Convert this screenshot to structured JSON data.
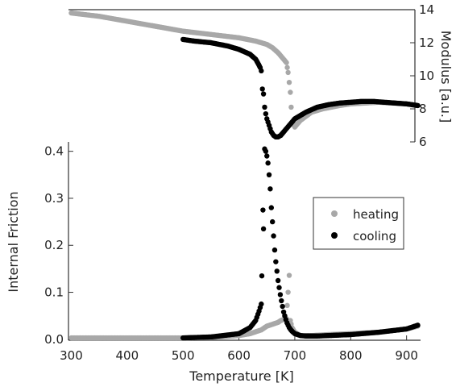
{
  "chart_data": [
    {
      "type": "scatter",
      "title": "",
      "xlabel": "Temperature [K]",
      "ylabel": "Internal Friction",
      "xlim": [
        295,
        925
      ],
      "ylim": [
        -0.002,
        0.42
      ],
      "xticks": [
        "300",
        "400",
        "500",
        "600",
        "700",
        "800",
        "900"
      ],
      "yticks": [
        "0.0",
        "0.1",
        "0.2",
        "0.3",
        "0.4"
      ],
      "legend": {
        "position": "right",
        "entries": [
          "heating",
          "cooling"
        ]
      },
      "colors": {
        "heating": "#a8a8a8",
        "cooling": "#000000"
      },
      "series": [
        {
          "name": "heating",
          "x": [
            300,
            350,
            400,
            450,
            500,
            550,
            600,
            620,
            640,
            650,
            660,
            670,
            675,
            680,
            685,
            688,
            690,
            692,
            695,
            700,
            710,
            730,
            760,
            800,
            850,
            900,
            920
          ],
          "y": [
            0.003,
            0.003,
            0.003,
            0.003,
            0.003,
            0.004,
            0.008,
            0.012,
            0.02,
            0.028,
            0.032,
            0.036,
            0.04,
            0.042,
            0.044,
            0.1,
            0.136,
            0.04,
            0.025,
            0.015,
            0.008,
            0.008,
            0.01,
            0.012,
            0.015,
            0.022,
            0.028
          ]
        },
        {
          "name": "cooling",
          "x": [
            500,
            550,
            600,
            620,
            630,
            636,
            640,
            641,
            643,
            644,
            646,
            648,
            650,
            652,
            654,
            656,
            658,
            660,
            662,
            664,
            666,
            668,
            670,
            672,
            674,
            676,
            678,
            680,
            682,
            684,
            686,
            688,
            690,
            693,
            696,
            700,
            705,
            710,
            720,
            740,
            760,
            800,
            850,
            900,
            920
          ],
          "y": [
            0.003,
            0.005,
            0.012,
            0.025,
            0.04,
            0.06,
            0.075,
            0.135,
            0.275,
            0.235,
            0.405,
            0.4,
            0.39,
            0.375,
            0.35,
            0.32,
            0.28,
            0.25,
            0.22,
            0.19,
            0.165,
            0.145,
            0.125,
            0.11,
            0.095,
            0.082,
            0.07,
            0.058,
            0.05,
            0.042,
            0.035,
            0.03,
            0.025,
            0.02,
            0.016,
            0.012,
            0.01,
            0.008,
            0.007,
            0.007,
            0.008,
            0.01,
            0.015,
            0.022,
            0.03
          ]
        }
      ]
    },
    {
      "type": "scatter",
      "title": "",
      "xlabel": "",
      "ylabel": "Modulus [a.u.]",
      "xlim": [
        295,
        925
      ],
      "ylim": [
        6,
        14
      ],
      "yticks": [
        "6",
        "8",
        "10",
        "12",
        "14"
      ],
      "colors": {
        "heating": "#a8a8a8",
        "cooling": "#000000"
      },
      "series": [
        {
          "name": "heating",
          "x": [
            300,
            350,
            400,
            450,
            500,
            550,
            600,
            630,
            650,
            660,
            670,
            675,
            680,
            685,
            688,
            690,
            692,
            695,
            700,
            710,
            730,
            750,
            780,
            800,
            850,
            900,
            920
          ],
          "y": [
            13.8,
            13.6,
            13.3,
            13.0,
            12.7,
            12.5,
            12.3,
            12.1,
            11.9,
            11.7,
            11.4,
            11.2,
            11.0,
            10.8,
            10.2,
            9.6,
            9.0,
            7.2,
            6.9,
            7.3,
            7.8,
            8.0,
            8.2,
            8.3,
            8.4,
            8.3,
            8.2
          ]
        },
        {
          "name": "cooling",
          "x": [
            500,
            520,
            550,
            580,
            600,
            620,
            630,
            635,
            638,
            640,
            642,
            644,
            646,
            648,
            650,
            652,
            654,
            656,
            658,
            660,
            662,
            664,
            666,
            668,
            670,
            675,
            680,
            690,
            700,
            720,
            740,
            760,
            780,
            800,
            820,
            840,
            860,
            880,
            900,
            920
          ],
          "y": [
            12.2,
            12.1,
            12.0,
            11.8,
            11.6,
            11.3,
            11.0,
            10.7,
            10.5,
            10.3,
            9.2,
            8.9,
            8.1,
            7.7,
            7.4,
            7.2,
            7.0,
            6.8,
            6.6,
            6.5,
            6.4,
            6.35,
            6.3,
            6.3,
            6.3,
            6.4,
            6.6,
            7.0,
            7.4,
            7.8,
            8.1,
            8.25,
            8.35,
            8.4,
            8.45,
            8.45,
            8.4,
            8.35,
            8.3,
            8.2
          ]
        }
      ]
    }
  ]
}
